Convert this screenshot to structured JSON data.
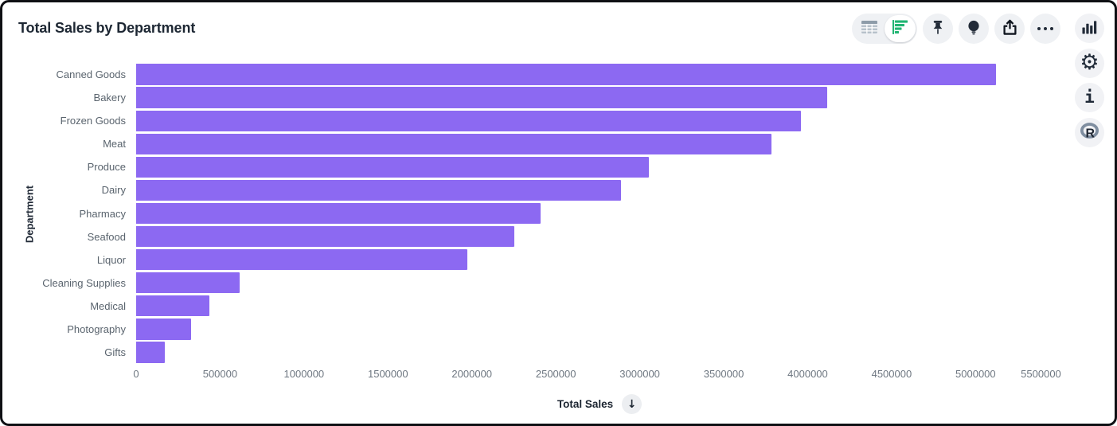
{
  "header": {
    "title": "Total Sales by Department"
  },
  "toolbar": {
    "view_toggle": {
      "options": [
        {
          "name": "table-view",
          "icon": "table-grid-icon",
          "selected": false
        },
        {
          "name": "chart-view",
          "icon": "horizontal-bar-chart-icon",
          "selected": true
        }
      ]
    },
    "buttons": [
      {
        "name": "pin",
        "icon": "pushpin-icon"
      },
      {
        "name": "explain",
        "icon": "lightbulb-icon"
      },
      {
        "name": "export",
        "icon": "share-upload-icon"
      },
      {
        "name": "more-options",
        "icon": "ellipsis-icon"
      }
    ]
  },
  "side_rail": {
    "buttons": [
      {
        "name": "chart-type",
        "icon": "column-chart-icon"
      },
      {
        "name": "settings",
        "icon": "gear-icon",
        "glyph": "⚙"
      },
      {
        "name": "info",
        "icon": "info-icon",
        "glyph": "i"
      },
      {
        "name": "r-language",
        "icon": "r-logo-icon",
        "glyph": "R"
      }
    ]
  },
  "chart_data": {
    "type": "bar",
    "orientation": "horizontal",
    "title": "Total Sales by Department",
    "xlabel": "Total Sales",
    "ylabel": "Department",
    "categories": [
      "Canned Goods",
      "Bakery",
      "Frozen Goods",
      "Meat",
      "Produce",
      "Dairy",
      "Pharmacy",
      "Seafood",
      "Liquor",
      "Cleaning Supplies",
      "Medical",
      "Photography",
      "Gifts"
    ],
    "values": [
      5120000,
      4115000,
      3960000,
      3785000,
      3055000,
      2890000,
      2410000,
      2255000,
      1975000,
      615000,
      435000,
      327000,
      170000
    ],
    "xlim": [
      0,
      5520000
    ],
    "xticks": [
      0,
      500000,
      1000000,
      1500000,
      2000000,
      2500000,
      3000000,
      3500000,
      4000000,
      4500000,
      5000000,
      5500000
    ],
    "bar_color": "#8C69F2",
    "grid": false,
    "legend": false,
    "sort": "descending",
    "sort_indicator": "↓"
  },
  "colors": {
    "bar": "#8C69F2",
    "selected_view_green": "#22B573",
    "icon_dark": "#222B38",
    "button_bg": "#EFF1F4",
    "axis_text": "#6E7781",
    "category_text": "#5A646E",
    "title_text": "#1D2733"
  }
}
